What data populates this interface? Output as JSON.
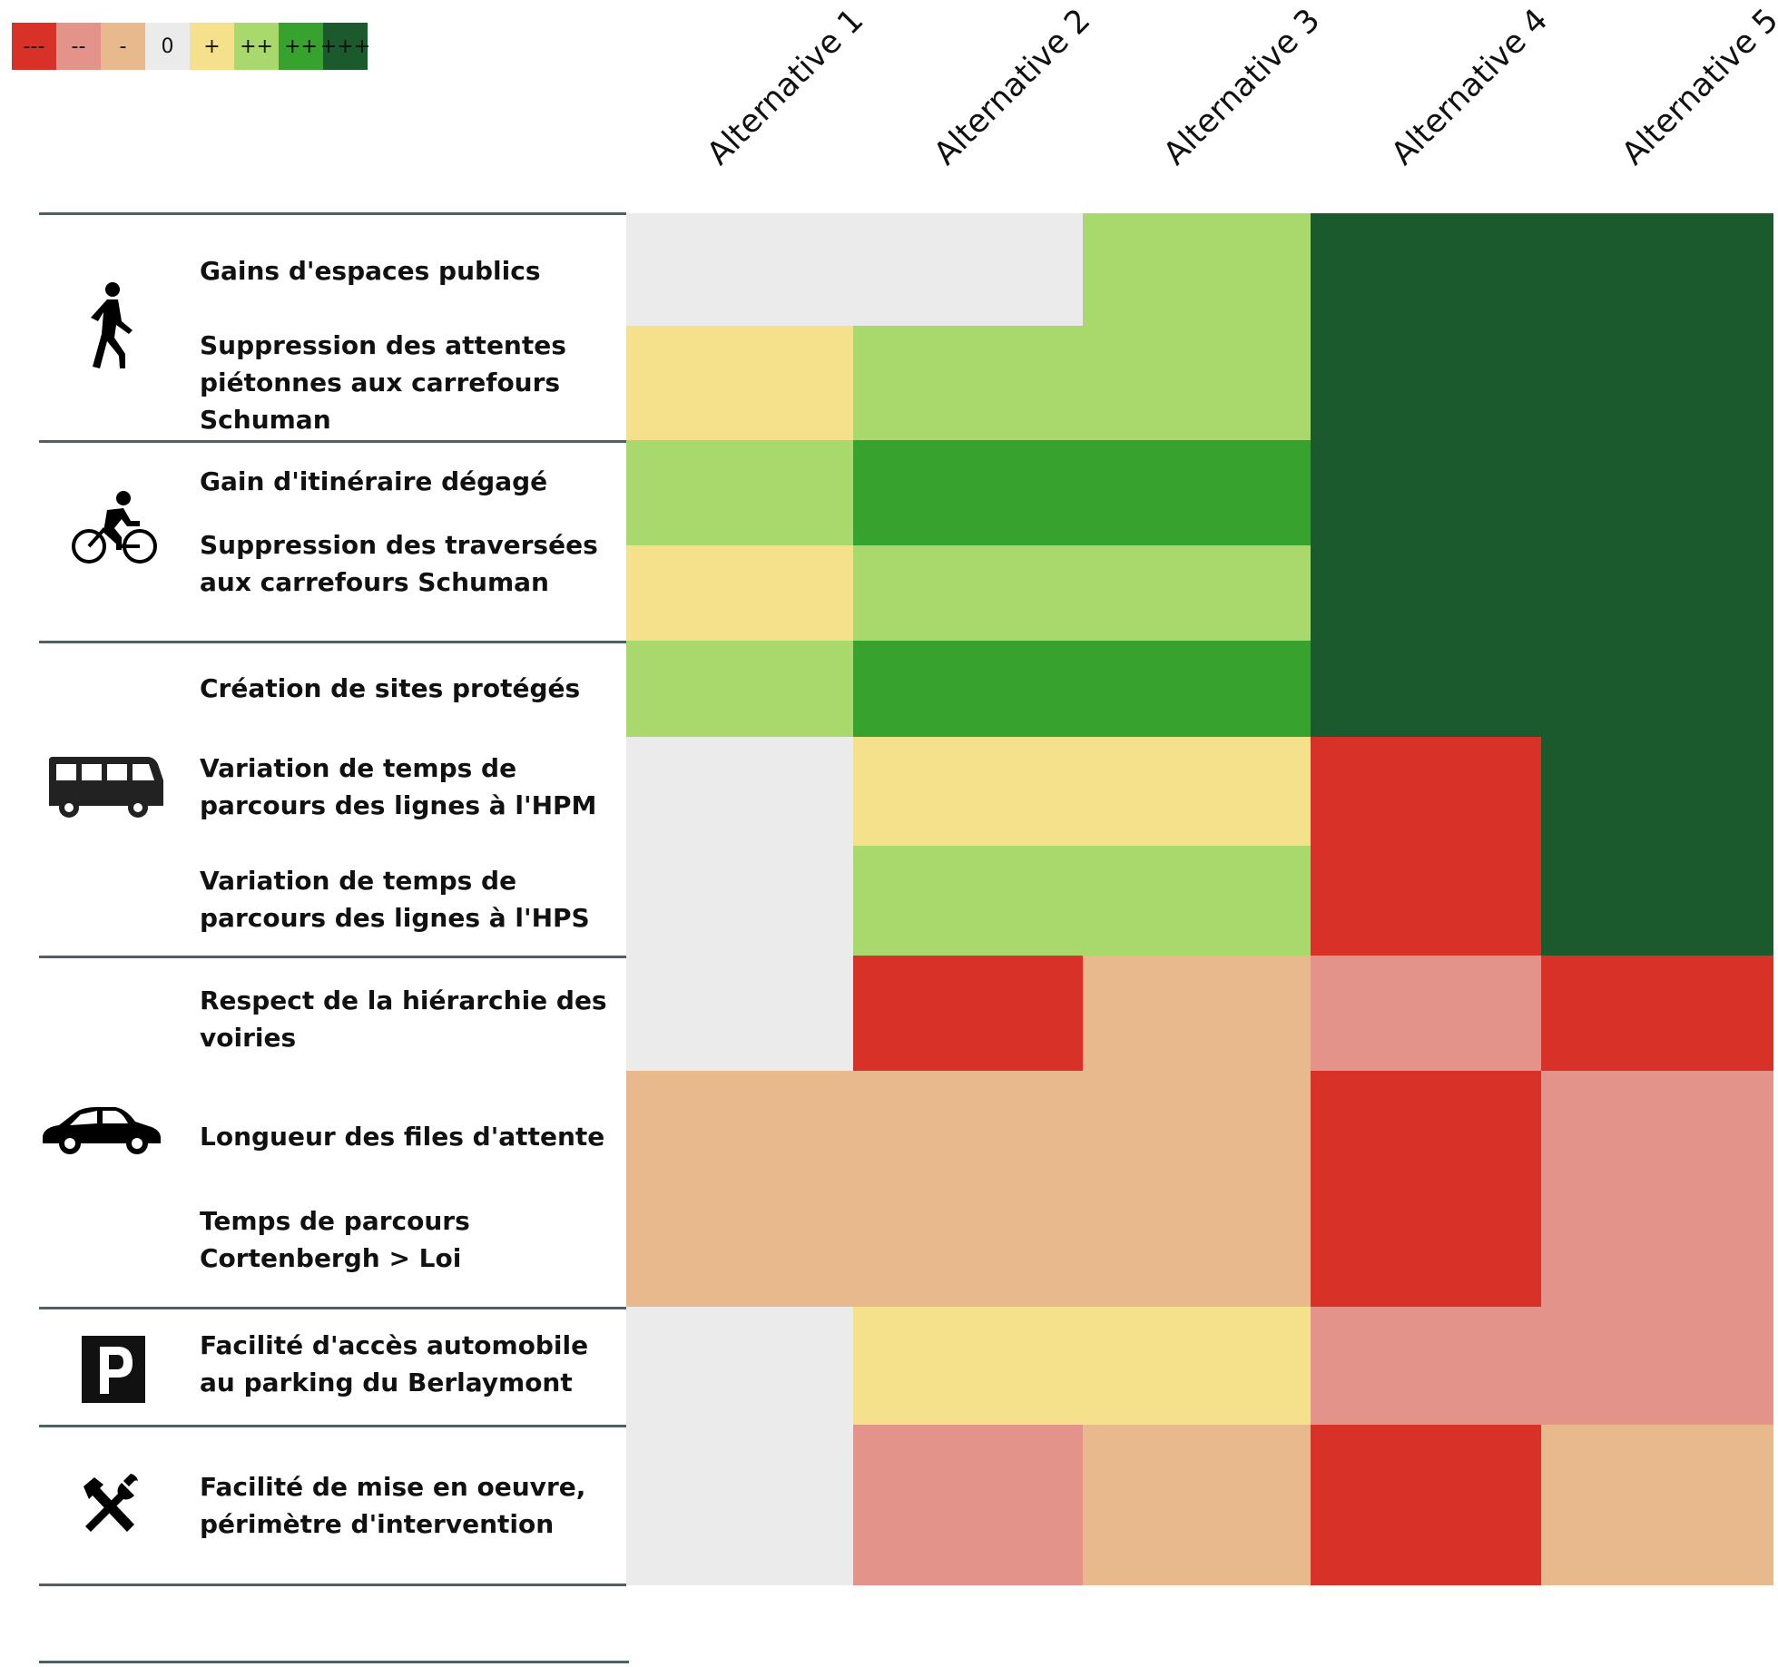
{
  "legend": [
    {
      "label": "---",
      "color": "#d83128"
    },
    {
      "label": "--",
      "color": "#e4938b"
    },
    {
      "label": "-",
      "color": "#e7b98c"
    },
    {
      "label": "0",
      "color": "#ecebeb"
    },
    {
      "label": "+",
      "color": "#f5e08c"
    },
    {
      "label": "++",
      "color": "#a9d86c"
    },
    {
      "label": "++",
      "color": "#37a22e"
    },
    {
      "label": "+++",
      "color": "#1a5a2d"
    }
  ],
  "columns": [
    "Alternative 1",
    "Alternative 2",
    "Alternative 3",
    "Alternative 4",
    "Alternative 5"
  ],
  "groups": [
    {
      "icon": "pedestrian-icon",
      "rows": [
        "Gains d'espaces publics",
        "Suppression des attentes piétonnes aux carrefours Schuman"
      ]
    },
    {
      "icon": "bicycle-icon",
      "rows": [
        "Gain d'itinéraire dégagé",
        "Suppression des traversées aux carrefours Schuman"
      ]
    },
    {
      "icon": "bus-icon",
      "rows": [
        "Création de sites protégés",
        "Variation de temps de parcours des lignes à l'HPM",
        "Variation de temps de parcours des lignes à l'HPS"
      ]
    },
    {
      "icon": "car-icon",
      "rows": [
        "Respect de la hiérarchie des voiries",
        "Longueur des files d'attente",
        "Temps de parcours Cortenbergh > Loi"
      ]
    },
    {
      "icon": "parking-icon",
      "rows": [
        "Facilité d'accès automobile au parking du Berlaymont"
      ]
    },
    {
      "icon": "tools-icon",
      "rows": [
        "Facilité de mise en oeuvre, périmètre d'intervention"
      ]
    }
  ],
  "chart_data": {
    "type": "heatmap",
    "scale": [
      "---",
      "--",
      "-",
      "0",
      "+",
      "++",
      "++",
      "+++"
    ],
    "columns": [
      "Alternative 1",
      "Alternative 2",
      "Alternative 3",
      "Alternative 4",
      "Alternative 5"
    ],
    "rows": [
      "Gains d'espaces publics",
      "Suppression des attentes piétonnes aux carrefours Schuman",
      "Gain d'itinéraire dégagé",
      "Suppression des traversées aux carrefours Schuman",
      "Création de sites protégés",
      "Variation de temps de parcours des lignes à l'HPM",
      "Variation de temps de parcours des lignes à l'HPS",
      "Respect de la hiérarchie des voiries",
      "Longueur des files d'attente",
      "Temps de parcours Cortenbergh > Loi",
      "Facilité d'accès automobile au parking du Berlaymont",
      "Facilité de mise en oeuvre, périmètre d'intervention"
    ],
    "values": [
      [
        "0",
        "0",
        "++",
        "+++",
        "+++"
      ],
      [
        "+",
        "++",
        "++",
        "+++",
        "+++"
      ],
      [
        "++",
        "++",
        "++",
        "+++",
        "+++"
      ],
      [
        "+",
        "++",
        "++",
        "+++",
        "+++"
      ],
      [
        "++",
        "++",
        "++",
        "+++",
        "+++"
      ],
      [
        "0",
        "+",
        "+",
        "---",
        "+++"
      ],
      [
        "0",
        "++",
        "++",
        "---",
        "+++"
      ],
      [
        "0",
        "---",
        "-",
        "--",
        "---"
      ],
      [
        "-",
        "-",
        "-",
        "---",
        "--"
      ],
      [
        "-",
        "-",
        "-",
        "---",
        "--"
      ],
      [
        "0",
        "+",
        "+",
        "--",
        "--"
      ],
      [
        "0",
        "--",
        "-",
        "---",
        "-"
      ]
    ],
    "value_index": [
      [
        3,
        3,
        5,
        7,
        7
      ],
      [
        4,
        5,
        5,
        7,
        7
      ],
      [
        5,
        6,
        6,
        7,
        7
      ],
      [
        4,
        5,
        5,
        7,
        7
      ],
      [
        5,
        6,
        6,
        7,
        7
      ],
      [
        3,
        4,
        4,
        0,
        7
      ],
      [
        3,
        5,
        5,
        0,
        7
      ],
      [
        3,
        0,
        2,
        1,
        0
      ],
      [
        2,
        2,
        2,
        0,
        1
      ],
      [
        2,
        2,
        2,
        0,
        1
      ],
      [
        3,
        4,
        4,
        1,
        1
      ],
      [
        3,
        1,
        2,
        0,
        2
      ]
    ]
  }
}
